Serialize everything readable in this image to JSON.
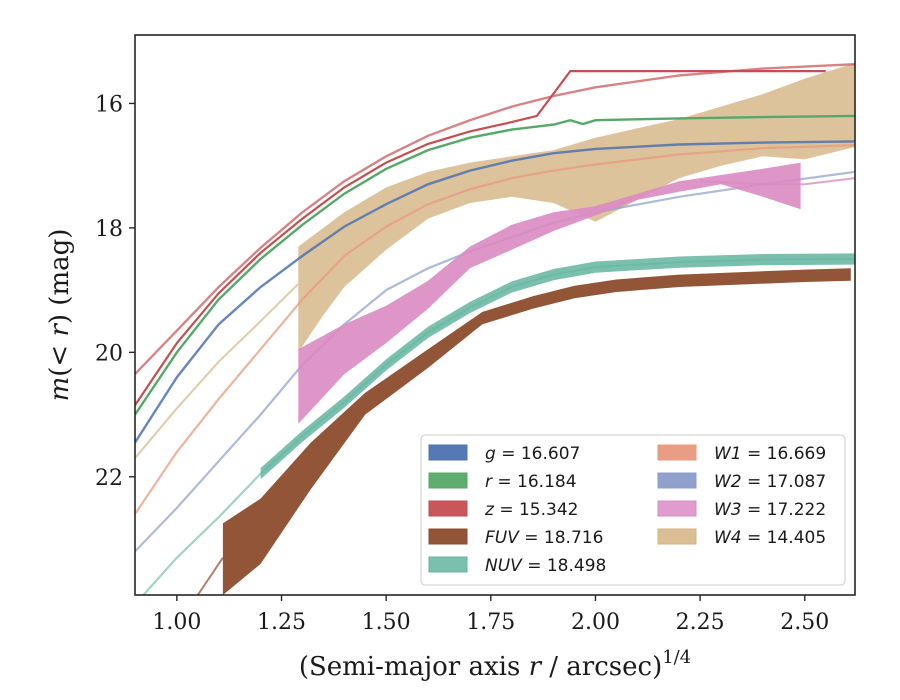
{
  "chart_data": {
    "type": "line",
    "title": "",
    "xlabel": "(Semi-major axis r / arcsec)",
    "xlabel_parts": {
      "pre": "(Semi-major axis ",
      "var": "r",
      "post": " / arcsec)",
      "sup": "1/4"
    },
    "ylabel": "m(< r) (mag)",
    "ylabel_parts": {
      "m": "m",
      "lp": "(",
      "lt": "<",
      "r": " r",
      "rp": ")",
      "unit": " (mag)"
    },
    "xlim": [
      0.9,
      2.62
    ],
    "ylim": [
      23.9,
      14.9
    ],
    "y_inverted": true,
    "xticks": [
      1.0,
      1.25,
      1.5,
      1.75,
      2.0,
      2.25,
      2.5
    ],
    "xtick_labels": [
      "1.00",
      "1.25",
      "1.50",
      "1.75",
      "2.00",
      "2.25",
      "2.50"
    ],
    "yticks": [
      16,
      18,
      20,
      22
    ],
    "ytick_labels": [
      "16",
      "18",
      "20",
      "22"
    ],
    "legend_position": "lower-right",
    "series": [
      {
        "key": "g",
        "var": "g",
        "value": "16.607",
        "color": "#4c72b0",
        "x": [
          0.9,
          1.0,
          1.1,
          1.2,
          1.3,
          1.4,
          1.5,
          1.6,
          1.7,
          1.8,
          1.9,
          2.0,
          2.2,
          2.4,
          2.62
        ],
        "y": [
          21.45,
          20.4,
          19.55,
          18.95,
          18.45,
          17.98,
          17.62,
          17.3,
          17.08,
          16.92,
          16.8,
          16.73,
          16.66,
          16.63,
          16.61
        ],
        "band": false
      },
      {
        "key": "r",
        "var": "r",
        "value": "16.184",
        "color": "#55a868",
        "x": [
          0.9,
          1.0,
          1.1,
          1.2,
          1.3,
          1.4,
          1.5,
          1.6,
          1.7,
          1.8,
          1.9,
          1.94,
          1.97,
          2.0,
          2.2,
          2.4,
          2.62
        ],
        "y": [
          21.0,
          20.0,
          19.15,
          18.5,
          17.95,
          17.45,
          17.05,
          16.75,
          16.55,
          16.42,
          16.34,
          16.27,
          16.33,
          16.27,
          16.24,
          16.22,
          16.2
        ],
        "band": false
      },
      {
        "key": "z",
        "var": "z",
        "value": "15.342",
        "color": "#c44e52",
        "x": [
          0.9,
          1.0,
          1.1,
          1.2,
          1.3,
          1.4,
          1.5,
          1.6,
          1.7,
          1.8,
          1.86,
          1.94,
          2.2,
          2.4,
          2.55
        ],
        "y": [
          20.85,
          19.85,
          19.05,
          18.4,
          17.85,
          17.35,
          16.95,
          16.65,
          16.45,
          16.3,
          16.2,
          15.48,
          15.48,
          15.48,
          15.48
        ],
        "smooth_x": [
          0.9,
          1.0,
          1.1,
          1.2,
          1.3,
          1.4,
          1.5,
          1.6,
          1.7,
          1.8,
          1.9,
          2.0,
          2.2,
          2.4,
          2.62
        ],
        "smooth_y": [
          20.35,
          19.65,
          18.95,
          18.32,
          17.75,
          17.25,
          16.85,
          16.52,
          16.27,
          16.05,
          15.88,
          15.74,
          15.55,
          15.44,
          15.37
        ],
        "band": false
      },
      {
        "key": "FUV",
        "var": "FUV",
        "value": "18.716",
        "color": "#8c4c2c",
        "x": [
          1.11,
          1.2,
          1.32,
          1.45,
          1.6,
          1.73,
          1.85,
          1.95,
          2.05,
          2.2,
          2.35,
          2.5,
          2.61
        ],
        "y_lo": [
          22.75,
          22.35,
          21.45,
          20.65,
          19.95,
          19.35,
          19.1,
          18.93,
          18.83,
          18.75,
          18.71,
          18.67,
          18.65
        ],
        "y_hi": [
          23.9,
          23.4,
          22.2,
          21.0,
          20.25,
          19.55,
          19.3,
          19.13,
          19.03,
          18.95,
          18.91,
          18.87,
          18.85
        ],
        "extra_x": [
          1.05,
          1.11
        ],
        "extra_y": [
          23.9,
          23.3
        ],
        "band": true
      },
      {
        "key": "NUV",
        "var": "NUV",
        "value": "18.498",
        "color": "#64b5a0",
        "x": [
          0.92,
          1.0,
          1.1,
          1.2,
          1.3,
          1.4,
          1.5,
          1.6,
          1.7,
          1.8,
          1.9,
          2.0,
          2.2,
          2.4,
          2.62
        ],
        "y": [
          23.9,
          23.3,
          22.65,
          21.95,
          21.35,
          20.8,
          20.2,
          19.68,
          19.28,
          18.95,
          18.75,
          18.63,
          18.55,
          18.51,
          18.5
        ],
        "band_from": 1.11,
        "band_width": 0.18,
        "band": true
      },
      {
        "key": "W1",
        "var": "W1",
        "value": "16.669",
        "color": "#e8997c",
        "x": [
          0.9,
          1.0,
          1.1,
          1.2,
          1.3,
          1.4,
          1.5,
          1.6,
          1.7,
          1.8,
          1.9,
          2.0,
          2.2,
          2.4,
          2.62
        ],
        "y": [
          22.6,
          21.6,
          20.75,
          19.95,
          19.15,
          18.45,
          17.98,
          17.62,
          17.38,
          17.2,
          17.08,
          16.98,
          16.82,
          16.72,
          16.67
        ],
        "band": false
      },
      {
        "key": "W2",
        "var": "W2",
        "value": "17.087",
        "color": "#8c9cc8",
        "x": [
          0.9,
          1.0,
          1.1,
          1.2,
          1.3,
          1.4,
          1.5,
          1.6,
          1.7,
          1.8,
          1.9,
          2.0,
          2.2,
          2.4,
          2.62
        ],
        "y": [
          23.2,
          22.5,
          21.75,
          21.0,
          20.2,
          19.55,
          19.0,
          18.65,
          18.38,
          18.15,
          17.92,
          17.75,
          17.5,
          17.3,
          17.1
        ],
        "band": false
      },
      {
        "key": "W3",
        "var": "W3",
        "value": "17.222",
        "color": "#da8bc3",
        "x": [
          1.29,
          1.4,
          1.5,
          1.6,
          1.7,
          1.8,
          1.9,
          2.0,
          2.1,
          2.2,
          2.3,
          2.4,
          2.49
        ],
        "y_lo": [
          19.95,
          19.55,
          19.25,
          18.85,
          18.3,
          17.95,
          17.75,
          17.65,
          17.45,
          17.25,
          17.15,
          17.05,
          16.95
        ],
        "y_hi": [
          21.15,
          20.35,
          19.85,
          19.3,
          18.65,
          18.35,
          18.05,
          17.8,
          17.55,
          17.42,
          17.3,
          17.5,
          17.7
        ],
        "line_x": [
          2.25,
          2.4,
          2.5,
          2.62
        ],
        "line_y": [
          17.25,
          17.3,
          17.3,
          17.2
        ],
        "band": true
      },
      {
        "key": "W4",
        "var": "W4",
        "value": "14.405",
        "color": "#d4b483",
        "x": [
          1.29,
          1.35,
          1.4,
          1.5,
          1.6,
          1.7,
          1.8,
          1.9,
          2.0,
          2.1,
          2.2,
          2.3,
          2.4,
          2.5,
          2.62
        ],
        "y_lo": [
          18.3,
          18.0,
          17.75,
          17.35,
          17.1,
          16.95,
          16.85,
          16.75,
          16.55,
          16.4,
          16.25,
          16.05,
          15.85,
          15.6,
          15.35
        ],
        "y_hi": [
          20.0,
          19.4,
          18.95,
          18.35,
          17.85,
          17.6,
          17.5,
          17.6,
          17.9,
          17.55,
          17.2,
          17.0,
          16.85,
          16.9,
          16.7
        ],
        "line_x": [
          0.9,
          1.0,
          1.1,
          1.2,
          1.29
        ],
        "line_y": [
          21.7,
          20.9,
          20.15,
          19.5,
          18.9
        ],
        "band": true
      }
    ]
  }
}
